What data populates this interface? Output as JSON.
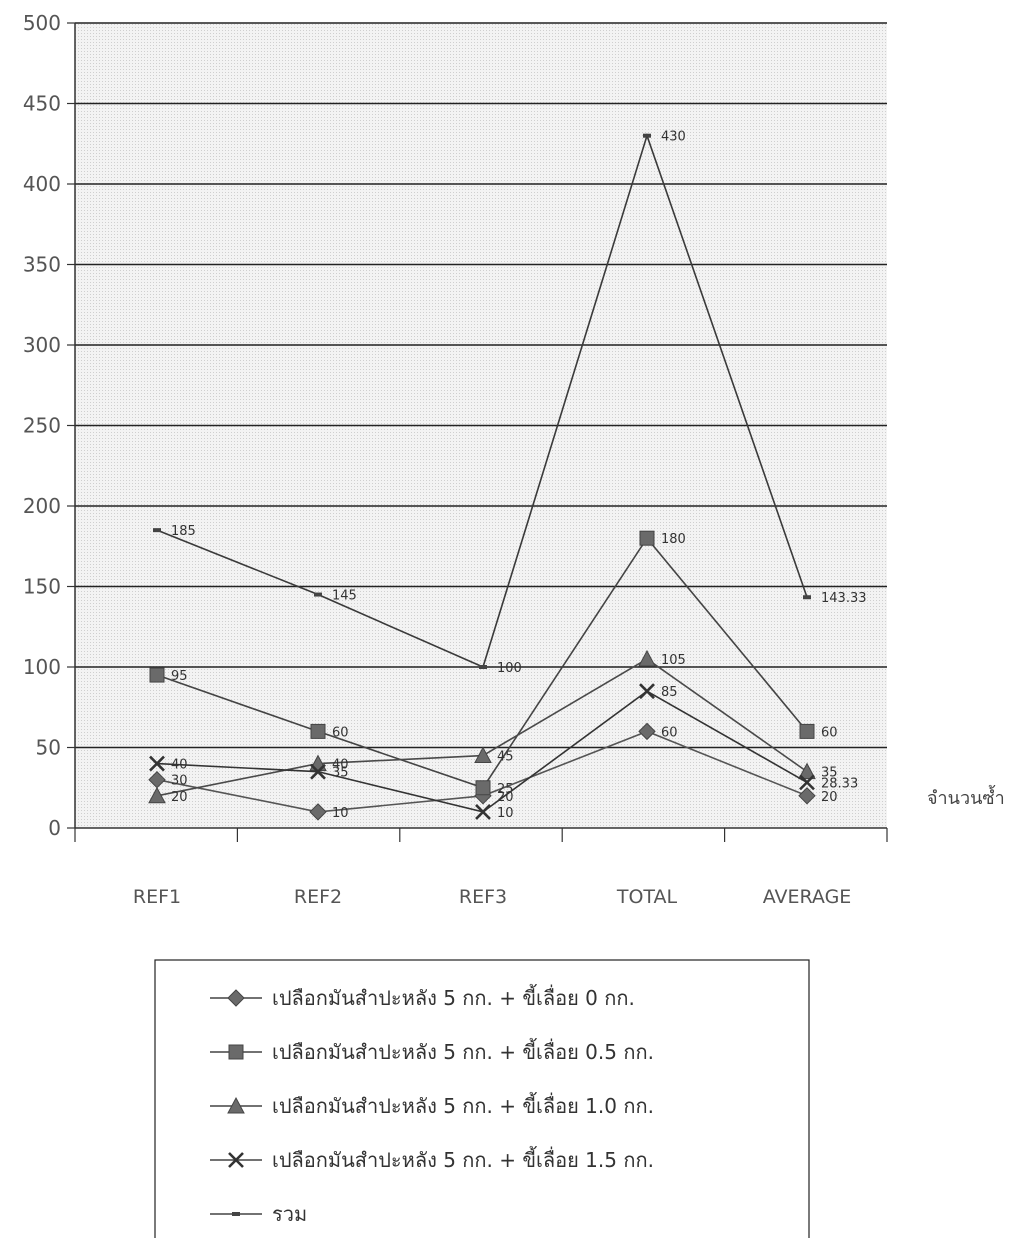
{
  "chart_data": {
    "type": "line",
    "title": "",
    "xlabel": "จำนวนซ้ำ",
    "ylabel": "",
    "ylim": [
      0,
      500
    ],
    "yticks": [
      0,
      50,
      100,
      150,
      200,
      250,
      300,
      350,
      400,
      450,
      500
    ],
    "categories": [
      "REF1",
      "REF2",
      "REF3",
      "TOTAL",
      "AVERAGE"
    ],
    "grid": true,
    "legend_position": "bottom",
    "series": [
      {
        "name": "เปลือกมันสำปะหลัง 5 กก. + ขี้เลื่อย 0 กก.",
        "marker": "diamond",
        "values": [
          30,
          10,
          20,
          60,
          20
        ],
        "labels": [
          "30",
          "10",
          "20",
          "60",
          "20"
        ]
      },
      {
        "name": "เปลือกมันสำปะหลัง 5 กก. + ขี้เลื่อย 0.5 กก.",
        "marker": "square",
        "values": [
          95,
          60,
          25,
          180,
          60
        ],
        "labels": [
          "95",
          "60",
          "25",
          "180",
          "60"
        ]
      },
      {
        "name": "เปลือกมันสำปะหลัง 5 กก. + ขี้เลื่อย 1.0 กก.",
        "marker": "triangle",
        "values": [
          20,
          40,
          45,
          105,
          35
        ],
        "labels": [
          "20",
          "40",
          "45",
          "105",
          "35"
        ]
      },
      {
        "name": "เปลือกมันสำปะหลัง 5 กก. + ขี้เลื่อย 1.5 กก.",
        "marker": "x",
        "values": [
          40,
          35,
          10,
          85,
          28.33
        ],
        "labels": [
          "40",
          "35",
          "10",
          "85",
          "28.33"
        ]
      },
      {
        "name": "รวม",
        "marker": "dash",
        "values": [
          185,
          145,
          100,
          430,
          143.33
        ],
        "labels": [
          "185",
          "145",
          "100",
          "430",
          "143.33"
        ]
      }
    ]
  }
}
